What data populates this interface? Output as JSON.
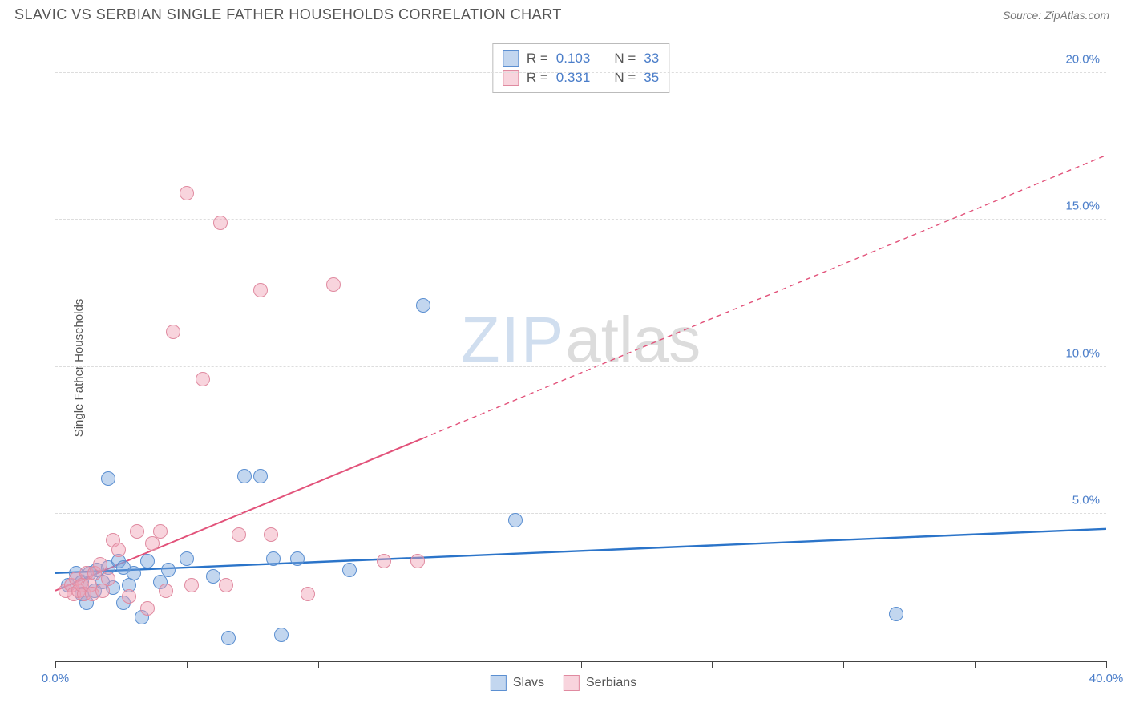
{
  "header": {
    "title": "SLAVIC VS SERBIAN SINGLE FATHER HOUSEHOLDS CORRELATION CHART",
    "source": "Source: ZipAtlas.com"
  },
  "chart": {
    "type": "scatter",
    "y_axis_label": "Single Father Households",
    "xlim": [
      0,
      40
    ],
    "ylim": [
      0,
      21
    ],
    "x_ticks": [
      0,
      5,
      10,
      15,
      20,
      25,
      30,
      35,
      40
    ],
    "x_tick_labels": {
      "0": "0.0%",
      "40": "40.0%"
    },
    "y_gridlines": [
      5,
      10,
      15,
      20
    ],
    "y_tick_labels": {
      "5": "5.0%",
      "10": "10.0%",
      "15": "15.0%",
      "20": "20.0%"
    },
    "grid_color": "#dddddd",
    "background_color": "#ffffff",
    "axis_color": "#444444",
    "tick_label_color": "#4a7dc9",
    "watermark": {
      "part1": "ZIP",
      "part2": "atlas"
    },
    "series": [
      {
        "name": "Slavs",
        "fill": "rgba(120,165,220,0.45)",
        "stroke": "#5b8fd1",
        "marker_radius": 9,
        "trend": {
          "x1": 0,
          "y1": 3.0,
          "x2": 40,
          "y2": 4.5,
          "color": "#2b74c9",
          "width": 2.4,
          "dash": "none"
        },
        "points": [
          [
            0.5,
            2.6
          ],
          [
            0.8,
            3.0
          ],
          [
            1.0,
            2.3
          ],
          [
            1.0,
            2.7
          ],
          [
            1.2,
            2.0
          ],
          [
            1.3,
            3.0
          ],
          [
            1.5,
            2.4
          ],
          [
            1.6,
            3.1
          ],
          [
            1.8,
            2.7
          ],
          [
            2.0,
            6.2
          ],
          [
            2.0,
            3.2
          ],
          [
            2.2,
            2.5
          ],
          [
            2.4,
            3.4
          ],
          [
            2.6,
            2.0
          ],
          [
            2.6,
            3.2
          ],
          [
            2.8,
            2.6
          ],
          [
            3.0,
            3.0
          ],
          [
            3.3,
            1.5
          ],
          [
            3.5,
            3.4
          ],
          [
            4.0,
            2.7
          ],
          [
            4.3,
            3.1
          ],
          [
            5.0,
            3.5
          ],
          [
            6.0,
            2.9
          ],
          [
            6.6,
            0.8
          ],
          [
            7.2,
            6.3
          ],
          [
            7.8,
            6.3
          ],
          [
            8.3,
            3.5
          ],
          [
            8.6,
            0.9
          ],
          [
            9.2,
            3.5
          ],
          [
            11.2,
            3.1
          ],
          [
            14.0,
            12.1
          ],
          [
            17.5,
            4.8
          ],
          [
            32.0,
            1.6
          ]
        ]
      },
      {
        "name": "Serbians",
        "fill": "rgba(240,160,180,0.45)",
        "stroke": "#e08aa0",
        "marker_radius": 9,
        "trend": {
          "x1": 0,
          "y1": 2.4,
          "x2": 40,
          "y2": 17.2,
          "color": "#e2527a",
          "width": 2.0,
          "dash": "solid-then-dashed",
          "dash_from_x": 14
        },
        "points": [
          [
            0.4,
            2.4
          ],
          [
            0.6,
            2.6
          ],
          [
            0.7,
            2.3
          ],
          [
            0.8,
            2.8
          ],
          [
            0.9,
            2.4
          ],
          [
            1.0,
            2.6
          ],
          [
            1.1,
            2.3
          ],
          [
            1.2,
            3.0
          ],
          [
            1.3,
            2.6
          ],
          [
            1.4,
            2.3
          ],
          [
            1.5,
            3.0
          ],
          [
            1.7,
            3.3
          ],
          [
            1.8,
            2.4
          ],
          [
            2.0,
            2.8
          ],
          [
            2.2,
            4.1
          ],
          [
            2.4,
            3.8
          ],
          [
            2.8,
            2.2
          ],
          [
            3.1,
            4.4
          ],
          [
            3.5,
            1.8
          ],
          [
            3.7,
            4.0
          ],
          [
            4.0,
            4.4
          ],
          [
            4.2,
            2.4
          ],
          [
            4.5,
            11.2
          ],
          [
            5.0,
            15.9
          ],
          [
            5.2,
            2.6
          ],
          [
            5.6,
            9.6
          ],
          [
            6.3,
            14.9
          ],
          [
            6.5,
            2.6
          ],
          [
            7.0,
            4.3
          ],
          [
            7.8,
            12.6
          ],
          [
            8.2,
            4.3
          ],
          [
            9.6,
            2.3
          ],
          [
            10.6,
            12.8
          ],
          [
            12.5,
            3.4
          ],
          [
            13.8,
            3.4
          ]
        ]
      }
    ],
    "stat_box": {
      "rows": [
        {
          "swatch_fill": "rgba(120,165,220,0.45)",
          "swatch_stroke": "#5b8fd1",
          "r_label": "R =",
          "r": "0.103",
          "n_label": "N =",
          "n": "33"
        },
        {
          "swatch_fill": "rgba(240,160,180,0.45)",
          "swatch_stroke": "#e08aa0",
          "r_label": "R =",
          "r": "0.331",
          "n_label": "N =",
          "n": "35"
        }
      ]
    },
    "bottom_legend": [
      {
        "swatch_fill": "rgba(120,165,220,0.45)",
        "swatch_stroke": "#5b8fd1",
        "label": "Slavs"
      },
      {
        "swatch_fill": "rgba(240,160,180,0.45)",
        "swatch_stroke": "#e08aa0",
        "label": "Serbians"
      }
    ]
  }
}
